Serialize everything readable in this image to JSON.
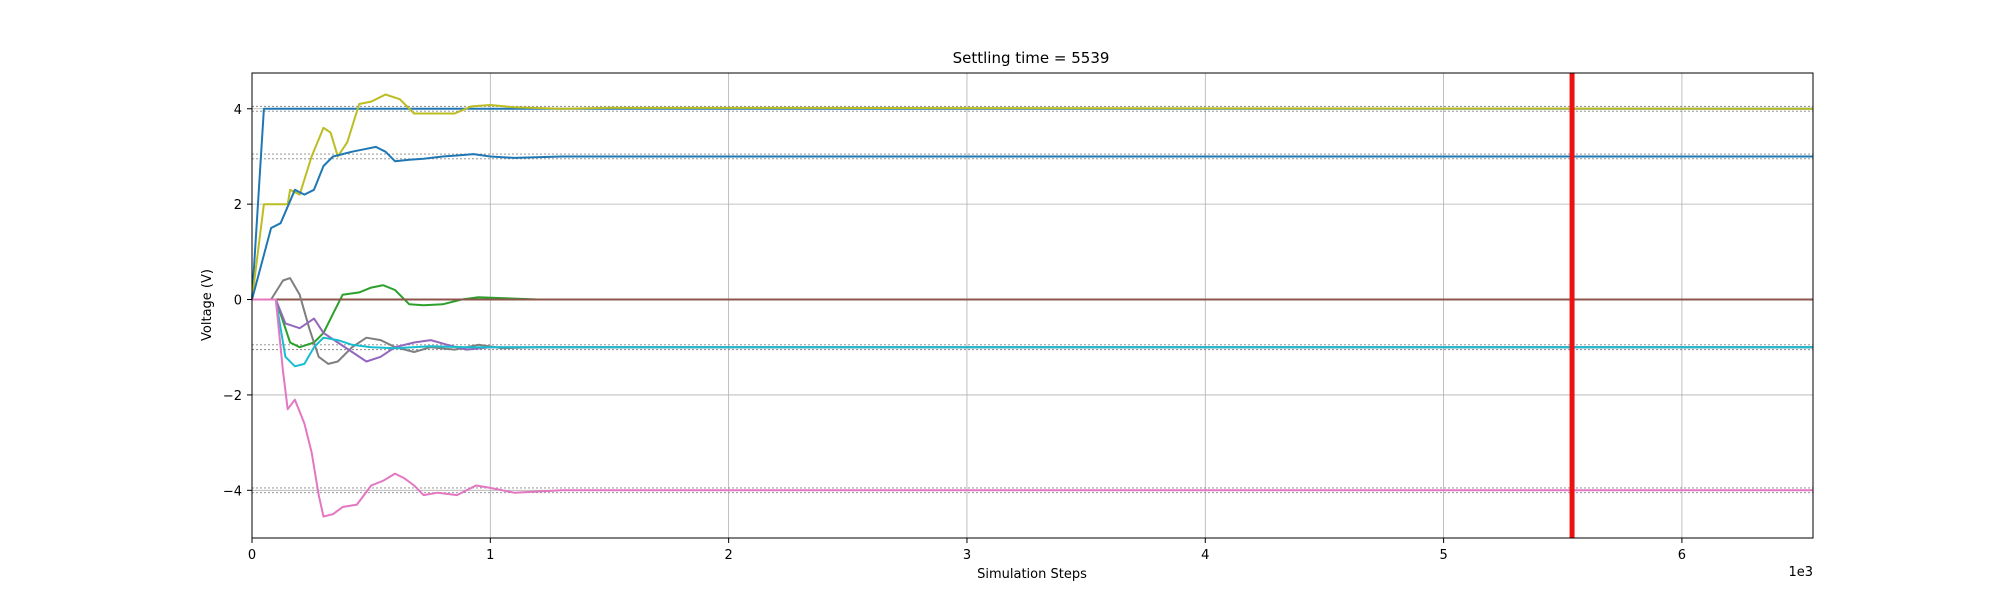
{
  "chart_data": {
    "type": "line",
    "title": "Settling time = 5539",
    "xlabel": "Simulation Steps",
    "ylabel": "Voltage (V)",
    "x_offset_text": "1e3",
    "xlim": [
      0,
      6.55
    ],
    "ylim": [
      -5,
      4.75
    ],
    "x_ticks": [
      0,
      1,
      2,
      3,
      4,
      5,
      6
    ],
    "y_ticks": [
      -4,
      -2,
      0,
      2,
      4
    ],
    "grid": true,
    "settling_marker": {
      "x": 5.539,
      "color": "#ee1111"
    },
    "tolerance_bands": [
      4.05,
      3.95,
      3.05,
      2.95,
      -0.95,
      -1.05,
      -3.95,
      -4.05
    ],
    "tolerance_color": "#888888",
    "series": [
      {
        "color": "#1f77b4",
        "points": [
          [
            0,
            0
          ],
          [
            0.05,
            4
          ],
          [
            0.3,
            4
          ],
          [
            0.7,
            4
          ],
          [
            1.2,
            4
          ],
          [
            6.55,
            4
          ]
        ]
      },
      {
        "color": "#bcbd22",
        "points": [
          [
            0,
            0
          ],
          [
            0.05,
            2
          ],
          [
            0.15,
            2
          ],
          [
            0.16,
            2.3
          ],
          [
            0.2,
            2.2
          ],
          [
            0.25,
            3
          ],
          [
            0.3,
            3.6
          ],
          [
            0.33,
            3.5
          ],
          [
            0.36,
            3.0
          ],
          [
            0.4,
            3.3
          ],
          [
            0.45,
            4.1
          ],
          [
            0.5,
            4.15
          ],
          [
            0.56,
            4.3
          ],
          [
            0.62,
            4.2
          ],
          [
            0.68,
            3.9
          ],
          [
            0.75,
            3.9
          ],
          [
            0.85,
            3.9
          ],
          [
            0.92,
            4.05
          ],
          [
            1.0,
            4.08
          ],
          [
            1.1,
            4.03
          ],
          [
            1.3,
            4.0
          ],
          [
            1.5,
            4.02
          ],
          [
            6.55,
            4.0
          ]
        ]
      },
      {
        "color": "#1f77b4",
        "points": [
          [
            0,
            0
          ],
          [
            0.08,
            1.5
          ],
          [
            0.12,
            1.6
          ],
          [
            0.18,
            2.3
          ],
          [
            0.22,
            2.2
          ],
          [
            0.26,
            2.3
          ],
          [
            0.3,
            2.8
          ],
          [
            0.34,
            3.0
          ],
          [
            0.38,
            3.05
          ],
          [
            0.42,
            3.1
          ],
          [
            0.47,
            3.15
          ],
          [
            0.52,
            3.2
          ],
          [
            0.56,
            3.1
          ],
          [
            0.6,
            2.9
          ],
          [
            0.66,
            2.93
          ],
          [
            0.72,
            2.95
          ],
          [
            0.8,
            3.0
          ],
          [
            0.86,
            3.02
          ],
          [
            0.93,
            3.05
          ],
          [
            1.0,
            3.0
          ],
          [
            1.1,
            2.97
          ],
          [
            1.3,
            3.0
          ],
          [
            6.55,
            3.0
          ]
        ]
      },
      {
        "color": "#2ca02c",
        "points": [
          [
            0,
            0
          ],
          [
            0.1,
            0
          ],
          [
            0.16,
            -0.9
          ],
          [
            0.2,
            -1.0
          ],
          [
            0.26,
            -0.9
          ],
          [
            0.3,
            -0.7
          ],
          [
            0.34,
            -0.3
          ],
          [
            0.38,
            0.1
          ],
          [
            0.45,
            0.15
          ],
          [
            0.5,
            0.25
          ],
          [
            0.55,
            0.3
          ],
          [
            0.6,
            0.2
          ],
          [
            0.66,
            -0.1
          ],
          [
            0.72,
            -0.12
          ],
          [
            0.8,
            -0.1
          ],
          [
            0.88,
            0.0
          ],
          [
            0.95,
            0.05
          ],
          [
            1.05,
            0.03
          ],
          [
            1.2,
            0.0
          ],
          [
            6.55,
            0.0
          ]
        ]
      },
      {
        "color": "#d62728",
        "points": [
          [
            0,
            0
          ],
          [
            6.55,
            0
          ]
        ]
      },
      {
        "color": "#8c564b",
        "points": [
          [
            0,
            0
          ],
          [
            6.55,
            0
          ]
        ]
      },
      {
        "color": "#7f7f7f",
        "points": [
          [
            0,
            0
          ],
          [
            0.08,
            0
          ],
          [
            0.13,
            0.4
          ],
          [
            0.16,
            0.45
          ],
          [
            0.2,
            0.1
          ],
          [
            0.24,
            -0.6
          ],
          [
            0.28,
            -1.2
          ],
          [
            0.32,
            -1.35
          ],
          [
            0.36,
            -1.3
          ],
          [
            0.42,
            -1.0
          ],
          [
            0.48,
            -0.8
          ],
          [
            0.54,
            -0.85
          ],
          [
            0.6,
            -1.0
          ],
          [
            0.68,
            -1.1
          ],
          [
            0.75,
            -1.0
          ],
          [
            0.85,
            -1.05
          ],
          [
            0.95,
            -0.95
          ],
          [
            1.05,
            -1.02
          ],
          [
            1.2,
            -1.0
          ],
          [
            6.55,
            -1.0
          ]
        ]
      },
      {
        "color": "#9467bd",
        "points": [
          [
            0,
            0
          ],
          [
            0.1,
            0
          ],
          [
            0.14,
            -0.5
          ],
          [
            0.2,
            -0.6
          ],
          [
            0.26,
            -0.4
          ],
          [
            0.3,
            -0.7
          ],
          [
            0.36,
            -0.9
          ],
          [
            0.42,
            -1.1
          ],
          [
            0.48,
            -1.3
          ],
          [
            0.54,
            -1.2
          ],
          [
            0.6,
            -1.0
          ],
          [
            0.68,
            -0.9
          ],
          [
            0.75,
            -0.85
          ],
          [
            0.82,
            -0.95
          ],
          [
            0.9,
            -1.05
          ],
          [
            1.0,
            -1.0
          ],
          [
            1.2,
            -1.0
          ],
          [
            6.55,
            -1.0
          ]
        ]
      },
      {
        "color": "#17becf",
        "points": [
          [
            0,
            0
          ],
          [
            0.1,
            0
          ],
          [
            0.14,
            -1.2
          ],
          [
            0.18,
            -1.4
          ],
          [
            0.22,
            -1.35
          ],
          [
            0.26,
            -1.0
          ],
          [
            0.3,
            -0.8
          ],
          [
            0.36,
            -0.85
          ],
          [
            0.42,
            -0.95
          ],
          [
            0.5,
            -1.0
          ],
          [
            0.6,
            -1.02
          ],
          [
            0.75,
            -0.98
          ],
          [
            0.9,
            -1.0
          ],
          [
            6.55,
            -1.0
          ]
        ]
      },
      {
        "color": "#e377c2",
        "points": [
          [
            0,
            0
          ],
          [
            0.1,
            0
          ],
          [
            0.13,
            -1.5
          ],
          [
            0.15,
            -2.3
          ],
          [
            0.18,
            -2.1
          ],
          [
            0.22,
            -2.6
          ],
          [
            0.25,
            -3.2
          ],
          [
            0.28,
            -4.1
          ],
          [
            0.3,
            -4.55
          ],
          [
            0.34,
            -4.5
          ],
          [
            0.38,
            -4.35
          ],
          [
            0.44,
            -4.3
          ],
          [
            0.5,
            -3.9
          ],
          [
            0.55,
            -3.8
          ],
          [
            0.6,
            -3.65
          ],
          [
            0.64,
            -3.75
          ],
          [
            0.68,
            -3.9
          ],
          [
            0.72,
            -4.1
          ],
          [
            0.78,
            -4.05
          ],
          [
            0.86,
            -4.1
          ],
          [
            0.94,
            -3.9
          ],
          [
            1.0,
            -3.95
          ],
          [
            1.1,
            -4.05
          ],
          [
            1.3,
            -4.0
          ],
          [
            6.55,
            -4.0
          ]
        ]
      }
    ]
  }
}
